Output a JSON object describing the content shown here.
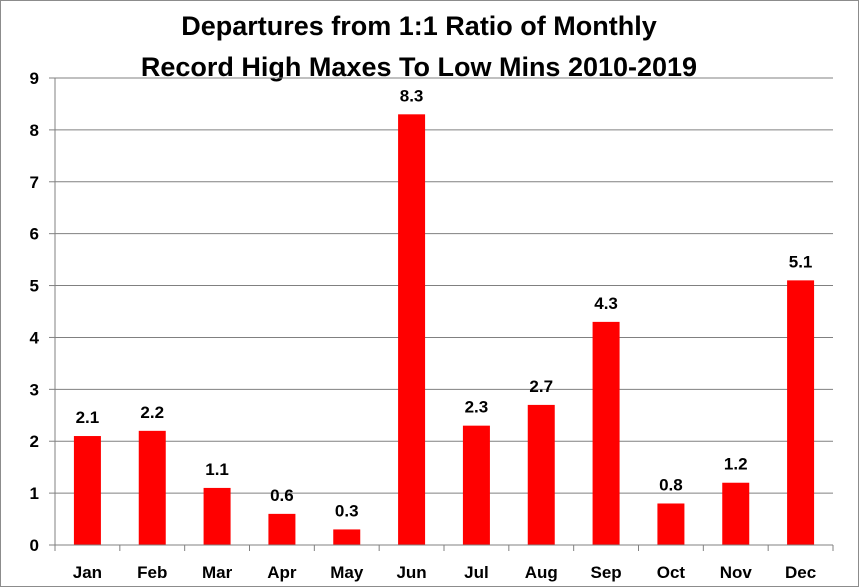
{
  "chart_data": {
    "type": "bar",
    "title_lines": [
      "Departures from 1:1 Ratio of Monthly",
      "Record High Maxes To Low Mins 2010-2019"
    ],
    "categories": [
      "Jan",
      "Feb",
      "Mar",
      "Apr",
      "May",
      "Jun",
      "Jul",
      "Aug",
      "Sep",
      "Oct",
      "Nov",
      "Dec"
    ],
    "values": [
      2.1,
      2.2,
      1.1,
      0.6,
      0.3,
      8.3,
      2.3,
      2.7,
      4.3,
      0.8,
      1.2,
      5.1
    ],
    "value_labels": [
      "2.1",
      "2.2",
      "1.1",
      "0.6",
      "0.3",
      "8.3",
      "2.3",
      "2.7",
      "4.3",
      "0.8",
      "1.2",
      "5.1"
    ],
    "ylim": [
      0,
      9
    ],
    "yticks": [
      0,
      1,
      2,
      3,
      4,
      5,
      6,
      7,
      8,
      9
    ],
    "grid": true,
    "legend": "none",
    "bar_color": "#ff0000",
    "grid_color": "#808080"
  }
}
